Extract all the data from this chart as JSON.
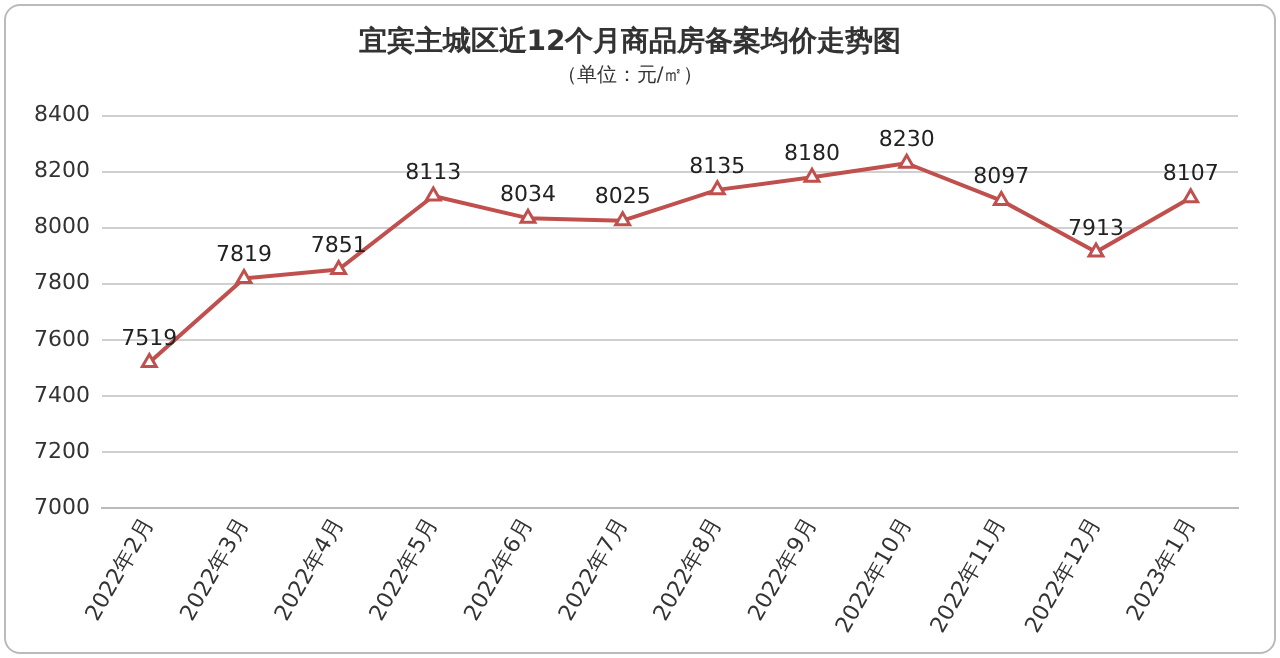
{
  "chart_data": {
    "type": "line",
    "title": "宜宾主城区近12个月商品房备案均价走势图",
    "subtitle": "（单位：元/㎡）",
    "categories": [
      "2022年2月",
      "2022年3月",
      "2022年4月",
      "2022年5月",
      "2022年6月",
      "2022年7月",
      "2022年8月",
      "2022年9月",
      "2022年10月",
      "2022年11月",
      "2022年12月",
      "2023年1月"
    ],
    "series": [
      {
        "color": "#c0504d",
        "values": [
          7519,
          7819,
          7851,
          8113,
          8034,
          8025,
          8135,
          8180,
          8230,
          8097,
          7913,
          8107
        ]
      }
    ],
    "ylim": [
      7000,
      8400
    ],
    "yticks": [
      7000,
      7200,
      7400,
      7600,
      7800,
      8000,
      8200,
      8400
    ],
    "grid": "y",
    "legend": false,
    "marker": "triangle",
    "line_style": "solid",
    "data_labels": true
  }
}
